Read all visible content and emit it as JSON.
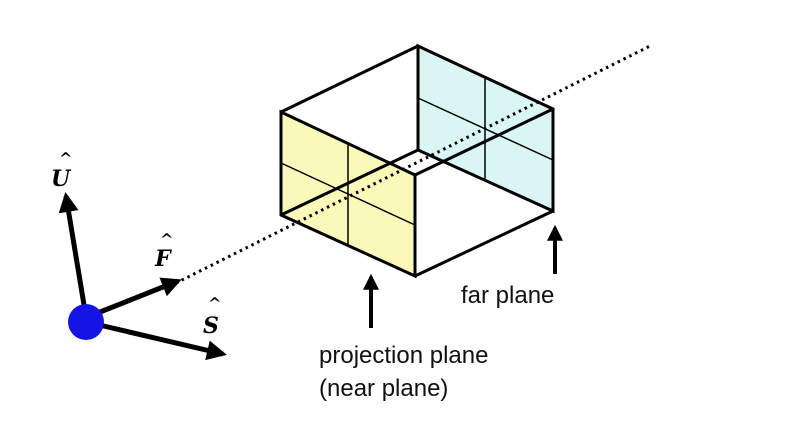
{
  "axes": {
    "up": {
      "letter": "U",
      "hat": "^"
    },
    "forward": {
      "letter": "F",
      "hat": "^"
    },
    "side": {
      "letter": "S",
      "hat": "^"
    }
  },
  "labels": {
    "far_plane": "far plane",
    "projection_plane_line1": "projection plane",
    "projection_plane_line2": "(near plane)"
  },
  "colors": {
    "near_plane_fill": "#fbf9b9",
    "far_plane_fill": "#d9f5f4",
    "eye_point": "#1414e6",
    "lines": "#000000"
  }
}
